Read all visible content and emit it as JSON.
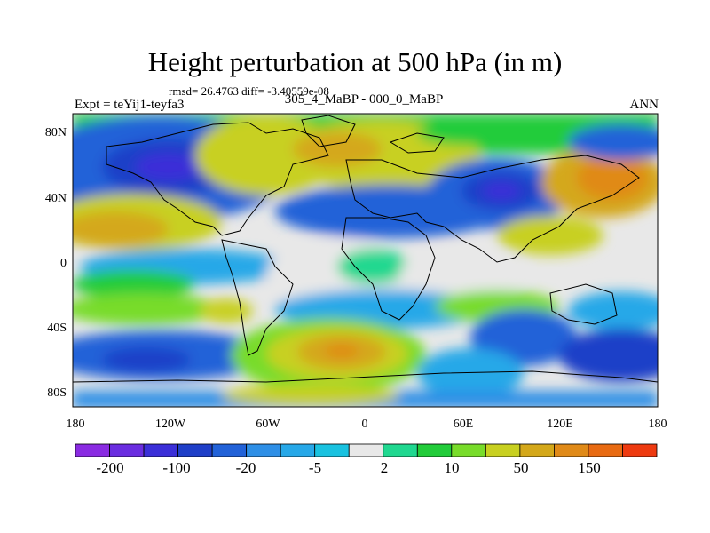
{
  "title": "Height perturbation at 500 hPa (in m)",
  "stats": "rmsd= 26.4763 diff= -3.40559e-08",
  "expt": "Expt = teYij1-teyfa3",
  "subtitle": "305_4_MaBP - 000_0_MaBP",
  "period": "ANN",
  "map": {
    "lon_range": [
      -180,
      180
    ],
    "lat_range": [
      -90,
      90
    ],
    "lat_ticks": [
      "80N",
      "40N",
      "0",
      "40S",
      "80S"
    ],
    "lon_ticks": [
      "180",
      "120W",
      "60W",
      "0",
      "60E",
      "120E",
      "180"
    ]
  },
  "colorbar": {
    "colors": [
      "#8a2be2",
      "#6a2de0",
      "#3b2fd8",
      "#1f3fc8",
      "#2262d8",
      "#2e8fe6",
      "#27a8e8",
      "#19c2e0",
      "#e8e8e8",
      "#20d890",
      "#22cc3a",
      "#78dc2a",
      "#c8d020",
      "#d4a81a",
      "#e08a18",
      "#e86a12",
      "#ee3a10"
    ],
    "labels": [
      "-200",
      "-100",
      "-20",
      "-5",
      "2",
      "10",
      "50",
      "150"
    ]
  }
}
